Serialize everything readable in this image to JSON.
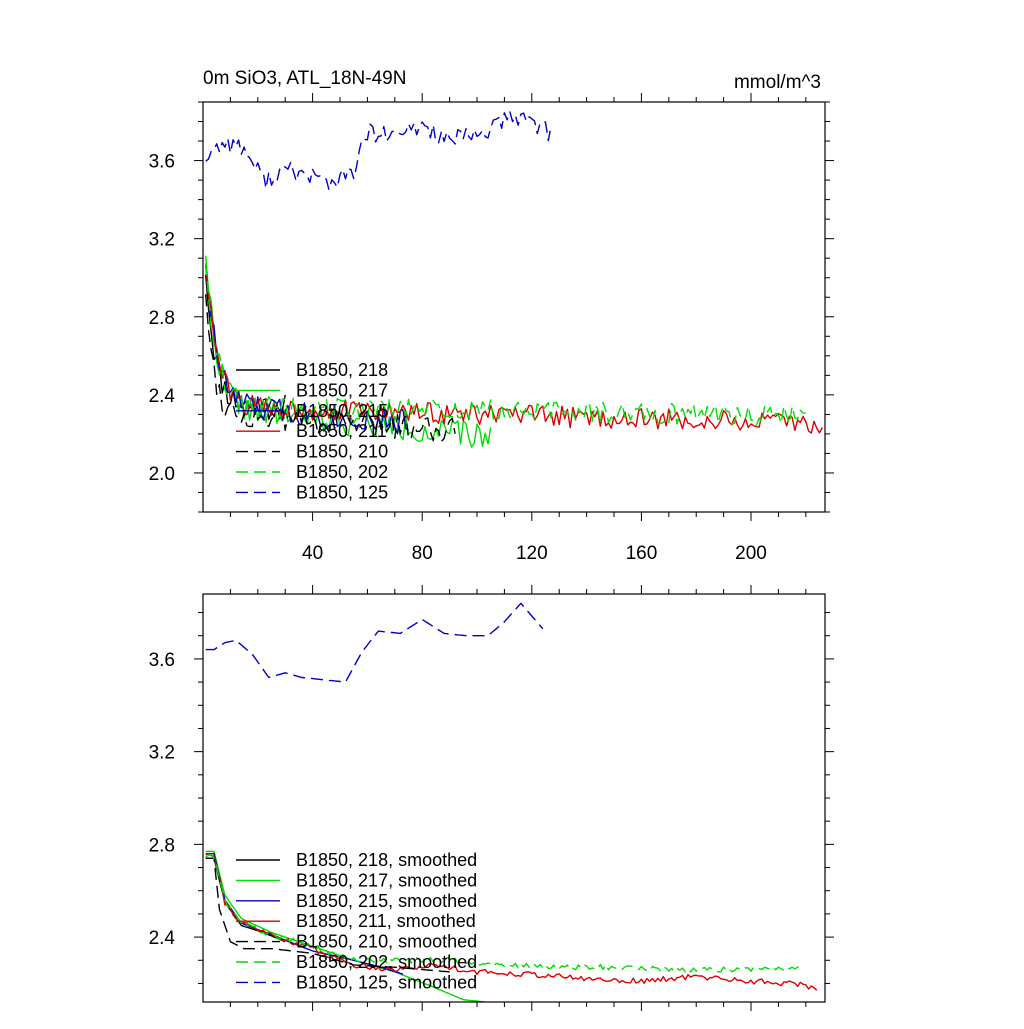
{
  "chart_data": [
    {
      "type": "line",
      "title": "0m SiO3, ATL_18N-49N",
      "units": "mmol/m^3",
      "xlim": [
        0,
        227
      ],
      "ylim": [
        1.8,
        3.9
      ],
      "xticks": [
        40,
        80,
        120,
        160,
        200
      ],
      "yticks": [
        2.0,
        2.4,
        2.8,
        3.2,
        3.6
      ],
      "xtick_labels": [
        "40",
        "80",
        "120",
        "160",
        "200"
      ],
      "ytick_labels": [
        "2.0",
        "2.4",
        "2.8",
        "3.2",
        "3.6"
      ],
      "legend_position": "lower-left",
      "series": [
        {
          "name": "B1850, 218",
          "color": "#000000",
          "dash": "solid",
          "length": 30,
          "start": 3.05,
          "plateau": 2.34,
          "decay": 3.5,
          "noise": 0.07,
          "seed": 11,
          "trend": 0.0
        },
        {
          "name": "B1850, 217",
          "color": "#00dd00",
          "dash": "solid",
          "length": 105,
          "start": 3.15,
          "plateau": 2.34,
          "decay": 4.0,
          "noise": 0.07,
          "seed": 22,
          "trend": -0.0015
        },
        {
          "name": "B1850, 215",
          "color": "#0000cc",
          "dash": "solid",
          "length": 75,
          "start": 3.1,
          "plateau": 2.35,
          "decay": 4.0,
          "noise": 0.07,
          "seed": 33,
          "trend": -0.0012
        },
        {
          "name": "B1850, 211",
          "color": "#dd0000",
          "dash": "solid",
          "length": 226,
          "start": 3.1,
          "plateau": 2.34,
          "decay": 4.0,
          "noise": 0.055,
          "seed": 44,
          "trend": -0.0004
        },
        {
          "name": "B1850, 210",
          "color": "#000000",
          "dash": "dashed",
          "length": 92,
          "start": 2.95,
          "plateau": 2.3,
          "decay": 3.0,
          "noise": 0.07,
          "seed": 55,
          "trend": -0.0008
        },
        {
          "name": "B1850, 202",
          "color": "#00dd00",
          "dash": "dashed",
          "length": 220,
          "start": 3.1,
          "plateau": 2.34,
          "decay": 4.0,
          "noise": 0.055,
          "seed": 66,
          "trend": -0.0002
        },
        {
          "name": "B1850, 125",
          "color": "#0000cc",
          "dash": "dashed",
          "length": 127,
          "seed": 77,
          "noise": 0.05,
          "knots": [
            [
              1,
              3.62
            ],
            [
              8,
              3.7
            ],
            [
              15,
              3.66
            ],
            [
              22,
              3.5
            ],
            [
              30,
              3.55
            ],
            [
              40,
              3.52
            ],
            [
              48,
              3.48
            ],
            [
              55,
              3.55
            ],
            [
              60,
              3.74
            ],
            [
              70,
              3.72
            ],
            [
              80,
              3.78
            ],
            [
              90,
              3.7
            ],
            [
              100,
              3.73
            ],
            [
              110,
              3.8
            ],
            [
              118,
              3.83
            ],
            [
              127,
              3.73
            ]
          ]
        }
      ]
    },
    {
      "type": "line",
      "title": "",
      "xlim": [
        0,
        227
      ],
      "ylim": [
        2.12,
        3.88
      ],
      "yticks": [
        2.4,
        2.8,
        3.2,
        3.6
      ],
      "ytick_labels": [
        "2.4",
        "2.8",
        "3.2",
        "3.6"
      ],
      "legend_position": "lower-left",
      "series": [
        {
          "name": "B1850, 218, smoothed",
          "color": "#000000",
          "dash": "solid",
          "length": 30,
          "knots": [
            [
              4,
              2.74
            ],
            [
              8,
              2.55
            ],
            [
              14,
              2.45
            ],
            [
              22,
              2.42
            ],
            [
              30,
              2.38
            ]
          ]
        },
        {
          "name": "B1850, 217, smoothed",
          "color": "#00dd00",
          "dash": "solid",
          "length": 103,
          "knots": [
            [
              4,
              2.77
            ],
            [
              8,
              2.58
            ],
            [
              14,
              2.48
            ],
            [
              25,
              2.42
            ],
            [
              40,
              2.36
            ],
            [
              55,
              2.3
            ],
            [
              70,
              2.25
            ],
            [
              85,
              2.18
            ],
            [
              95,
              2.13
            ],
            [
              103,
              2.12
            ]
          ]
        },
        {
          "name": "B1850, 215, smoothed",
          "color": "#0000cc",
          "dash": "solid",
          "length": 73,
          "knots": [
            [
              4,
              2.76
            ],
            [
              8,
              2.56
            ],
            [
              14,
              2.46
            ],
            [
              25,
              2.41
            ],
            [
              40,
              2.34
            ],
            [
              55,
              2.3
            ],
            [
              65,
              2.27
            ],
            [
              73,
              2.24
            ]
          ]
        },
        {
          "name": "B1850, 211, smoothed",
          "color": "#dd0000",
          "dash": "solid",
          "length": 224,
          "knots": [
            [
              4,
              2.76
            ],
            [
              8,
              2.55
            ],
            [
              14,
              2.46
            ],
            [
              25,
              2.41
            ],
            [
              40,
              2.35
            ],
            [
              55,
              2.28
            ],
            [
              70,
              2.26
            ],
            [
              85,
              2.28
            ],
            [
              100,
              2.25
            ],
            [
              120,
              2.24
            ],
            [
              140,
              2.22
            ],
            [
              160,
              2.21
            ],
            [
              180,
              2.23
            ],
            [
              200,
              2.21
            ],
            [
              215,
              2.2
            ],
            [
              224,
              2.18
            ]
          ],
          "noise": 0.012,
          "seed": 91
        },
        {
          "name": "B1850, 210, smoothed",
          "color": "#000000",
          "dash": "dashed",
          "length": 90,
          "knots": [
            [
              4,
              2.74
            ],
            [
              6,
              2.52
            ],
            [
              10,
              2.38
            ],
            [
              15,
              2.35
            ],
            [
              25,
              2.35
            ],
            [
              40,
              2.33
            ],
            [
              55,
              2.28
            ],
            [
              70,
              2.27
            ],
            [
              80,
              2.26
            ],
            [
              90,
              2.25
            ]
          ]
        },
        {
          "name": "B1850, 202, smoothed",
          "color": "#00dd00",
          "dash": "dashed",
          "length": 218,
          "knots": [
            [
              4,
              2.75
            ],
            [
              8,
              2.55
            ],
            [
              14,
              2.46
            ],
            [
              25,
              2.41
            ],
            [
              40,
              2.36
            ],
            [
              55,
              2.3
            ],
            [
              70,
              2.3
            ],
            [
              90,
              2.3
            ],
            [
              110,
              2.28
            ],
            [
              130,
              2.27
            ],
            [
              150,
              2.27
            ],
            [
              170,
              2.26
            ],
            [
              190,
              2.26
            ],
            [
              210,
              2.26
            ],
            [
              218,
              2.27
            ]
          ],
          "noise": 0.012,
          "seed": 92
        },
        {
          "name": "B1850, 125, smoothed",
          "color": "#0000cc",
          "dash": "dashed",
          "length": 124,
          "knots": [
            [
              4,
              3.64
            ],
            [
              8,
              3.67
            ],
            [
              12,
              3.68
            ],
            [
              18,
              3.62
            ],
            [
              24,
              3.52
            ],
            [
              30,
              3.54
            ],
            [
              36,
              3.52
            ],
            [
              44,
              3.51
            ],
            [
              52,
              3.5
            ],
            [
              58,
              3.63
            ],
            [
              64,
              3.72
            ],
            [
              72,
              3.71
            ],
            [
              80,
              3.77
            ],
            [
              88,
              3.71
            ],
            [
              96,
              3.7
            ],
            [
              104,
              3.7
            ],
            [
              110,
              3.76
            ],
            [
              116,
              3.84
            ],
            [
              124,
              3.73
            ]
          ]
        }
      ]
    }
  ]
}
